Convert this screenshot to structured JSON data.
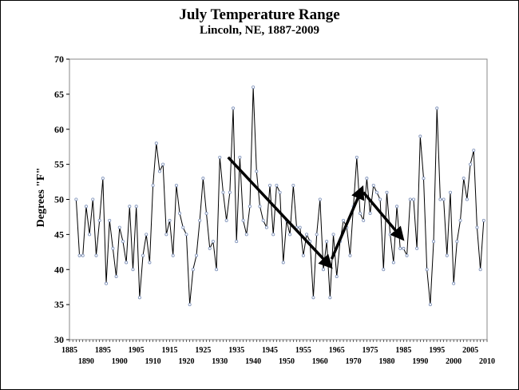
{
  "chart_data": {
    "type": "line",
    "title": "July Temperature Range",
    "subtitle": "Lincoln, NE, 1887-2009",
    "xlabel": "",
    "ylabel": "Degrees \"F\"",
    "ylim": [
      30,
      70
    ],
    "yticks": [
      30,
      35,
      40,
      45,
      50,
      55,
      60,
      65,
      70
    ],
    "xlim": [
      1885,
      2010
    ],
    "xticks_upper": [
      1885,
      1895,
      1905,
      1915,
      1925,
      1935,
      1945,
      1955,
      1965,
      1975,
      1985,
      1995,
      2005
    ],
    "xticks_lower": [
      1890,
      1900,
      1910,
      1920,
      1930,
      1940,
      1950,
      1960,
      1970,
      1980,
      1990,
      2000,
      2010
    ],
    "grid": false,
    "legend": "none",
    "x_start": 1887,
    "series": [
      {
        "values": [
          50,
          42,
          42,
          49,
          45,
          50,
          42,
          47,
          53,
          38,
          47,
          43,
          39,
          46,
          44,
          41,
          49,
          40,
          49,
          36,
          42,
          45,
          41,
          52,
          58,
          54,
          55,
          45,
          47,
          42,
          52,
          48,
          46,
          45,
          35,
          40,
          42,
          47,
          53,
          48,
          43,
          44,
          40,
          56,
          51,
          47,
          51,
          63,
          44,
          56,
          47,
          45,
          49,
          66,
          54,
          49,
          47,
          46,
          52,
          45,
          52,
          51,
          41,
          47,
          45,
          52,
          46,
          46,
          42,
          45,
          44,
          36,
          45,
          50,
          40,
          44,
          36,
          45,
          39,
          44,
          47,
          46,
          42,
          49,
          56,
          48,
          47,
          53,
          48,
          52,
          51,
          50,
          40,
          51,
          45,
          41,
          49,
          43,
          43,
          42,
          50,
          50,
          43,
          59,
          53,
          40,
          35,
          44,
          63,
          50,
          50,
          42,
          51,
          38,
          44,
          47,
          53,
          50,
          55,
          57,
          46,
          40,
          47
        ]
      }
    ],
    "colors": {
      "line": "#000000",
      "marker": "#7b8fb8",
      "arrow": "#000000"
    },
    "annotations": [
      {
        "type": "arrow",
        "from": [
          1932.5,
          56
        ],
        "to": [
          1963,
          40.5
        ]
      },
      {
        "type": "arrow",
        "from": [
          1963.5,
          41.5
        ],
        "to": [
          1972.5,
          51.5
        ]
      },
      {
        "type": "arrow",
        "from": [
          1973,
          51
        ],
        "to": [
          1984.5,
          44.5
        ]
      }
    ]
  }
}
